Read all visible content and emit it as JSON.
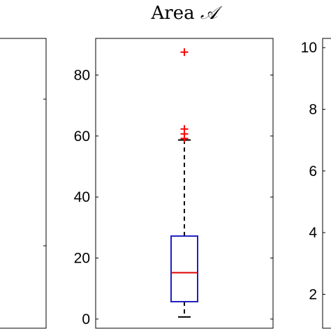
{
  "chart_data": [
    {
      "type": "boxplot",
      "panel": "left",
      "title": "",
      "xlabel": "",
      "ylabel": "",
      "ylim": null,
      "yticks": [],
      "boxes": []
    },
    {
      "type": "boxplot",
      "panel": "center",
      "title": "Area ",
      "title_symbol": "𝒜",
      "xlabel": "",
      "ylabel": "",
      "ylim": [
        -3,
        92
      ],
      "yticks": [
        0,
        20,
        40,
        60,
        80
      ],
      "grid": false,
      "boxes": [
        {
          "whisker_low": 0.7,
          "q1": 5.7,
          "median": 15.2,
          "q3": 27.2,
          "whisker_high": 58.7,
          "outliers": [
            87.5,
            62.3,
            60.7,
            59.2
          ]
        }
      ],
      "colors": {
        "box": "#1f1fbf",
        "median": "#e00000",
        "whisker": "#000000",
        "outlier": "#ff0000"
      }
    },
    {
      "type": "boxplot",
      "panel": "right",
      "title": "",
      "xlabel": "",
      "ylabel": "",
      "ylim": [
        0.9,
        10.3
      ],
      "yticks": [
        2,
        4,
        6,
        8,
        10
      ],
      "grid": false,
      "boxes": []
    }
  ]
}
